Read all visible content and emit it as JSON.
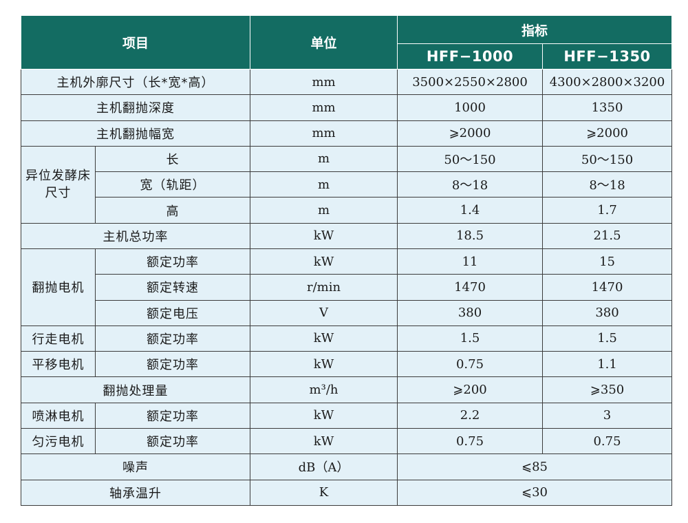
{
  "table": {
    "headers": {
      "item": "项目",
      "unit": "单位",
      "spec": "指标",
      "model_1": "HFF−1000",
      "model_2": "HFF−1350"
    },
    "rows": {
      "dimensions": {
        "label": "主机外廓尺寸（长*宽*高）",
        "unit": "mm",
        "v1": "3500×2550×2800",
        "v2": "4300×2800×3200"
      },
      "turn_depth": {
        "label": "主机翻抛深度",
        "unit": "mm",
        "v1": "1000",
        "v2": "1350"
      },
      "turn_width": {
        "label": "主机翻抛幅宽",
        "unit": "mm",
        "v1": "⩾2000",
        "v2": "⩾2000"
      },
      "bed": {
        "group": "异位发酵床尺寸",
        "length": {
          "label": "长",
          "unit": "m",
          "v1": "50～150",
          "v2": "50～150"
        },
        "width": {
          "label": "宽（轨距）",
          "unit": "m",
          "v1": "8～18",
          "v2": "8～18"
        },
        "height": {
          "label": "高",
          "unit": "m",
          "v1": "1.4",
          "v2": "1.7"
        }
      },
      "total_power": {
        "label": "主机总功率",
        "unit": "kW",
        "v1": "18.5",
        "v2": "21.5"
      },
      "turn_motor": {
        "group": "翻抛电机",
        "power": {
          "label": "额定功率",
          "unit": "kW",
          "v1": "11",
          "v2": "15"
        },
        "speed": {
          "label": "额定转速",
          "unit": "r/min",
          "v1": "1470",
          "v2": "1470"
        },
        "voltage": {
          "label": "额定电压",
          "unit": "V",
          "v1": "380",
          "v2": "380"
        }
      },
      "walk_motor": {
        "group": "行走电机",
        "label": "额定功率",
        "unit": "kW",
        "v1": "1.5",
        "v2": "1.5"
      },
      "shift_motor": {
        "group": "平移电机",
        "label": "额定功率",
        "unit": "kW",
        "v1": "0.75",
        "v2": "1.1"
      },
      "capacity": {
        "label": "翻抛处理量",
        "unit": "m³/h",
        "v1": "⩾200",
        "v2": "⩾350"
      },
      "spray_motor": {
        "group": "喷淋电机",
        "label": "额定功率",
        "unit": "kW",
        "v1": "2.2",
        "v2": "3"
      },
      "mix_motor": {
        "group": "匀污电机",
        "label": "额定功率",
        "unit": "kW",
        "v1": "0.75",
        "v2": "0.75"
      },
      "noise": {
        "label": "噪声",
        "unit": "dB（A）",
        "value": "⩽85"
      },
      "bearing_temp": {
        "label": "轴承温升",
        "unit": "K",
        "value": "⩽30"
      }
    }
  }
}
